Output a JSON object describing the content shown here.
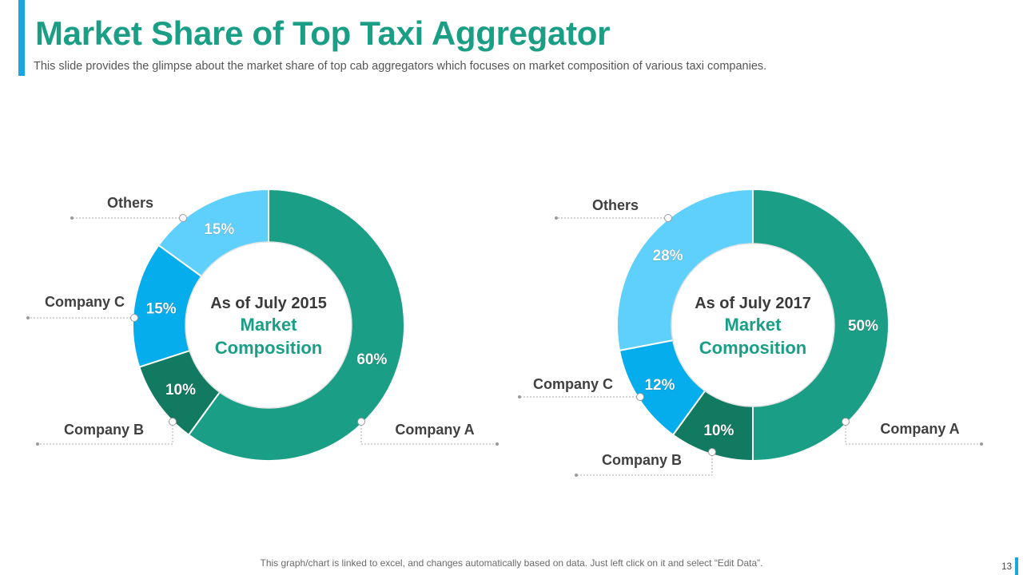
{
  "slide": {
    "title": "Market Share of Top Taxi Aggregator",
    "subtitle": "This slide provides the glimpse about the market share of top cab aggregators which focuses on market composition of various taxi companies.",
    "footer": "This graph/chart is linked to excel, and changes automatically based on data. Just left click on it and select “Edit Data”.",
    "page_number": "13"
  },
  "colors": {
    "accent": "#1aa7e0",
    "title": "#1a9e85",
    "company_a": "#1a9e85",
    "company_b": "#137a62",
    "company_c": "#06adec",
    "others": "#5fd0fb"
  },
  "chart_data": [
    {
      "type": "pie",
      "variant": "donut",
      "center_label": {
        "line1": "As of July 2015",
        "line2": "Market",
        "line3": "Composition"
      },
      "slices": [
        {
          "label": "Company A",
          "value": 60,
          "value_label": "60%"
        },
        {
          "label": "Company B",
          "value": 10,
          "value_label": "10%"
        },
        {
          "label": "Company C",
          "value": 15,
          "value_label": "15%"
        },
        {
          "label": "Others",
          "value": 15,
          "value_label": "15%"
        }
      ]
    },
    {
      "type": "pie",
      "variant": "donut",
      "center_label": {
        "line1": "As of July 2017",
        "line2": "Market",
        "line3": "Composition"
      },
      "slices": [
        {
          "label": "Company A",
          "value": 50,
          "value_label": "50%"
        },
        {
          "label": "Company B",
          "value": 10,
          "value_label": "10%"
        },
        {
          "label": "Company C",
          "value": 12,
          "value_label": "12%"
        },
        {
          "label": "Others",
          "value": 28,
          "value_label": "28%"
        }
      ]
    }
  ]
}
